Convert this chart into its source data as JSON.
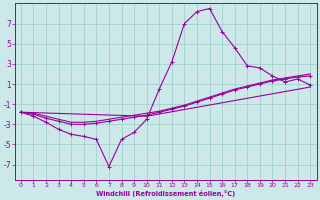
{
  "xlabel": "Windchill (Refroidissement éolien,°C)",
  "bg_color": "#cce8e8",
  "grid_color": "#99cccc",
  "line_color": "#990099",
  "xlim": [
    -0.5,
    23.5
  ],
  "ylim": [
    -8.5,
    9.0
  ],
  "xticks": [
    0,
    1,
    2,
    3,
    4,
    5,
    6,
    7,
    8,
    9,
    10,
    11,
    12,
    13,
    14,
    15,
    16,
    17,
    18,
    19,
    20,
    21,
    22,
    23
  ],
  "yticks": [
    -7,
    -5,
    -3,
    -1,
    1,
    3,
    5,
    7
  ],
  "series1_x": [
    0,
    1,
    2,
    3,
    4,
    5,
    6,
    7,
    8,
    9,
    10,
    11,
    12,
    13,
    14,
    15,
    16,
    17,
    18,
    19,
    20,
    21,
    22,
    23
  ],
  "series1_y": [
    -1.8,
    -2.2,
    -2.8,
    -3.5,
    -4.0,
    -4.2,
    -4.5,
    -7.2,
    -4.5,
    -3.8,
    -2.5,
    0.5,
    3.2,
    7.0,
    8.2,
    8.5,
    6.2,
    4.6,
    2.8,
    2.6,
    1.8,
    1.2,
    1.5,
    0.9
  ],
  "series2_x": [
    0,
    1,
    2,
    3,
    4,
    5,
    6,
    7,
    8,
    9,
    10,
    11,
    12,
    13,
    14,
    15,
    16,
    17,
    18,
    19,
    20,
    21,
    22,
    23
  ],
  "series2_y": [
    -1.8,
    -2.0,
    -2.4,
    -2.7,
    -3.0,
    -3.0,
    -2.9,
    -2.7,
    -2.5,
    -2.3,
    -2.1,
    -1.8,
    -1.5,
    -1.2,
    -0.8,
    -0.4,
    0.0,
    0.4,
    0.7,
    1.0,
    1.3,
    1.5,
    1.7,
    1.8
  ],
  "series3_x": [
    0,
    1,
    2,
    3,
    4,
    5,
    6,
    7,
    8,
    9,
    10,
    11,
    12,
    13,
    14,
    15,
    16,
    17,
    18,
    19,
    20,
    21,
    22,
    23
  ],
  "series3_y": [
    -1.8,
    -1.9,
    -2.2,
    -2.5,
    -2.8,
    -2.8,
    -2.7,
    -2.5,
    -2.3,
    -2.1,
    -1.9,
    -1.7,
    -1.4,
    -1.1,
    -0.7,
    -0.3,
    0.1,
    0.5,
    0.8,
    1.1,
    1.4,
    1.6,
    1.8,
    2.0
  ],
  "series4_x": [
    0,
    10,
    23
  ],
  "series4_y": [
    -1.8,
    -2.2,
    0.7
  ]
}
